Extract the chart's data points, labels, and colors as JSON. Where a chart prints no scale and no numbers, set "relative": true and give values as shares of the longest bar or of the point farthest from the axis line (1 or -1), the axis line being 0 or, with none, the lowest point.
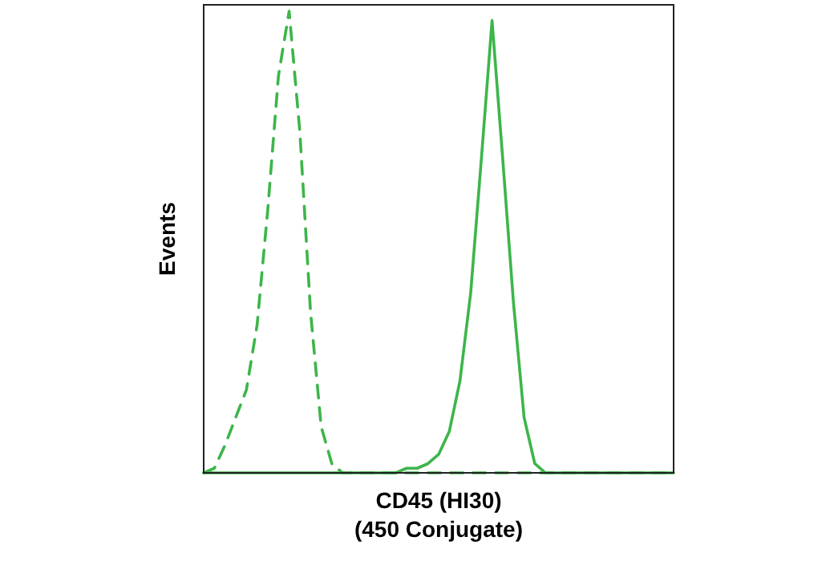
{
  "chart_data": {
    "type": "line",
    "relative": true,
    "ylabel": "Events",
    "xlabel": "CD45 (HI30)\n(450 Conjugate)",
    "categories": [
      null,
      null,
      null,
      null,
      null,
      null,
      null,
      null,
      null,
      null,
      null,
      null,
      null,
      null,
      null,
      null,
      null,
      null,
      null,
      null,
      null,
      null,
      null,
      null,
      null,
      null,
      null,
      null,
      null,
      null,
      null,
      null,
      null,
      null,
      null,
      null,
      null,
      null,
      null,
      null,
      null,
      null,
      null,
      null,
      null
    ],
    "series": [
      {
        "color": "#3db54a",
        "line_style": "dashed",
        "values": [
          0,
          0.01,
          0.06,
          0.12,
          0.18,
          0.32,
          0.57,
          0.86,
          1,
          0.74,
          0.35,
          0.1,
          0.02,
          0,
          0,
          0,
          0,
          0,
          0,
          0,
          0,
          0,
          0,
          0,
          0,
          0,
          0,
          0,
          0,
          0,
          0,
          0,
          0,
          0,
          0,
          0,
          0,
          0,
          0,
          0,
          0,
          0,
          0,
          0,
          0
        ]
      },
      {
        "color": "#3db54a",
        "line_style": "solid",
        "values": [
          0,
          0,
          0,
          0,
          0,
          0,
          0,
          0,
          0,
          0,
          0,
          0,
          0,
          0,
          0,
          0,
          0,
          0,
          0,
          0.01,
          0.01,
          0.02,
          0.04,
          0.09,
          0.2,
          0.39,
          0.68,
          0.98,
          0.68,
          0.37,
          0.12,
          0.02,
          0,
          0,
          0,
          0,
          0,
          0,
          0,
          0,
          0,
          0,
          0,
          0,
          0
        ]
      }
    ]
  }
}
